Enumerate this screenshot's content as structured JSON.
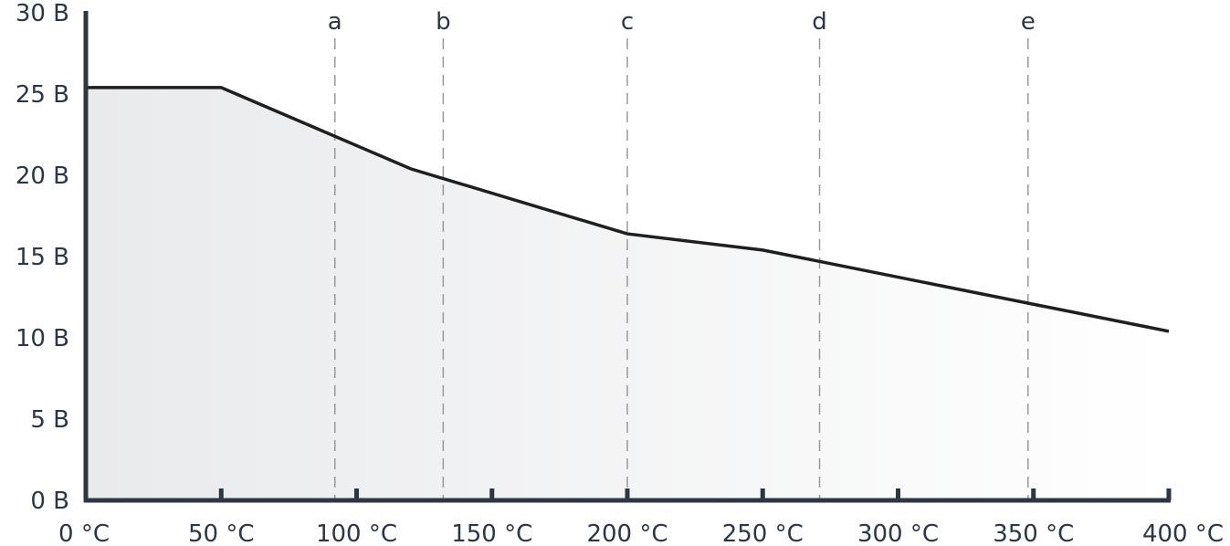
{
  "chart_data": {
    "type": "area",
    "x_unit": "°C",
    "y_unit": "B",
    "xlim": [
      0,
      400
    ],
    "ylim": [
      0,
      30
    ],
    "x_ticks": [
      0,
      50,
      100,
      150,
      200,
      250,
      300,
      350,
      400
    ],
    "y_ticks": [
      0,
      5,
      10,
      15,
      20,
      25,
      30
    ],
    "x_tick_labels": [
      "0 °C",
      "50 °C",
      "100 °C",
      "150 °C",
      "200 °C",
      "250 °C",
      "300 °C",
      "350 °C",
      "400 °C"
    ],
    "y_tick_labels": [
      "0 B",
      "5 B",
      "10 B",
      "15 B",
      "20 B",
      "25 B",
      "30 B"
    ],
    "grid": false,
    "series": [
      {
        "x": [
          0,
          50,
          120,
          200,
          250,
          400
        ],
        "y": [
          25.4,
          25.4,
          20.4,
          16.4,
          15.4,
          10.4
        ]
      }
    ],
    "markers": [
      {
        "label": "a",
        "x": 92
      },
      {
        "label": "b",
        "x": 132
      },
      {
        "label": "c",
        "x": 200
      },
      {
        "label": "d",
        "x": 271
      },
      {
        "label": "e",
        "x": 348
      }
    ],
    "colors": {
      "axis": "#2d3744",
      "line": "#1f1f1f",
      "fill_start": "#e9eaec",
      "fill_end": "#ffffff",
      "marker_line": "#9a9a9a"
    }
  }
}
